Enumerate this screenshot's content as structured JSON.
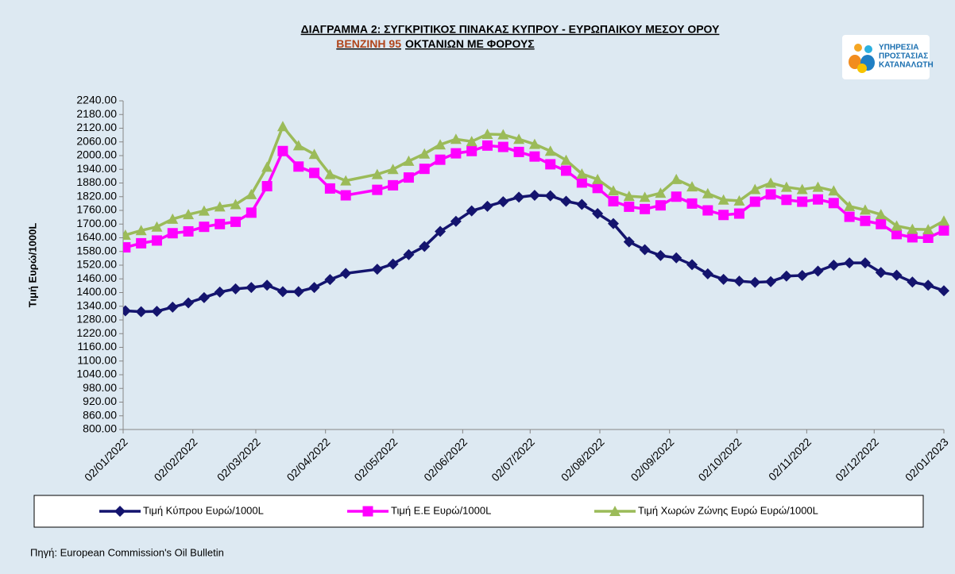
{
  "chart_data": {
    "type": "line",
    "title": "ΔΙΑΓΡΑΜΜΑ 2: ΣΥΓΚΡΙΤΙΚΟΣ ΠΙΝΑΚΑΣ ΚΥΠΡΟΥ - ΕΥΡΩΠΑΙΚΟΥ ΜΕΣΟΥ ΟΡΟΥ",
    "subtitle": [
      "ΒΕΝΖΙΝΗ 95",
      "ΟΚΤΑΝΙΩΝ ΜΕ ΦΟΡΟΥΣ"
    ],
    "y_label": "Τιμή Ευρώ/1000L",
    "x": [
      "03/01/2022",
      "10/01/2022",
      "17/01/2022",
      "24/01/2022",
      "31/01/2022",
      "07/02/2022",
      "14/02/2022",
      "21/02/2022",
      "28/02/2022",
      "07/03/2022",
      "14/03/2022",
      "21/03/2022",
      "28/03/2022",
      "04/04/2022",
      "11/04/2022",
      "25/04/2022",
      "02/05/2022",
      "09/05/2022",
      "16/05/2022",
      "23/05/2022",
      "30/05/2022",
      "06/06/2022",
      "13/06/2022",
      "20/06/2022",
      "27/06/2022",
      "04/07/2022",
      "11/07/2022",
      "18/07/2022",
      "25/07/2022",
      "01/08/2022",
      "08/08/2022",
      "15/08/2022",
      "22/08/2022",
      "29/08/2022",
      "05/09/2022",
      "12/09/2022",
      "19/09/2022",
      "26/09/2022",
      "03/10/2022",
      "10/10/2022",
      "17/10/2022",
      "24/10/2022",
      "31/10/2022",
      "07/11/2022",
      "14/11/2022",
      "21/11/2022",
      "28/11/2022",
      "05/12/2022",
      "12/12/2022",
      "19/12/2022",
      "26/12/2022",
      "02/01/2023"
    ],
    "series": [
      {
        "name": "Τιμή Κύπρου Ευρώ/1000L",
        "color": "#14146e",
        "marker": "diamond",
        "values": [
          1320,
          1316,
          1318,
          1336,
          1355,
          1378,
          1402,
          1416,
          1422,
          1432,
          1404,
          1404,
          1422,
          1457,
          1484,
          1502,
          1525,
          1566,
          1602,
          1668,
          1712,
          1758,
          1778,
          1798,
          1818,
          1826,
          1824,
          1800,
          1786,
          1746,
          1702,
          1622,
          1588,
          1562,
          1552,
          1522,
          1482,
          1458,
          1450,
          1445,
          1448,
          1472,
          1475,
          1494,
          1520,
          1530,
          1530,
          1488,
          1476,
          1446,
          1432,
          1408
        ]
      },
      {
        "name": "Τιμή Ε.Ε Ευρώ/1000L",
        "color": "#ff00ff",
        "marker": "square",
        "values": [
          1598,
          1616,
          1628,
          1660,
          1668,
          1688,
          1700,
          1710,
          1750,
          1866,
          2020,
          1952,
          1924,
          1856,
          1826,
          1850,
          1870,
          1904,
          1942,
          1982,
          2010,
          2020,
          2044,
          2038,
          2016,
          1996,
          1962,
          1934,
          1882,
          1858,
          1800,
          1776,
          1766,
          1782,
          1820,
          1790,
          1760,
          1740,
          1746,
          1798,
          1830,
          1806,
          1798,
          1808,
          1792,
          1732,
          1714,
          1700,
          1656,
          1642,
          1640,
          1672
        ]
      },
      {
        "name": "Τιμή Χωρών Ζώνης Ευρώ Ευρώ/1000L",
        "color": "#9bbb59",
        "marker": "triangle",
        "values": [
          1652,
          1672,
          1688,
          1722,
          1742,
          1758,
          1776,
          1786,
          1830,
          1950,
          2128,
          2044,
          2006,
          1918,
          1890,
          1918,
          1940,
          1976,
          2008,
          2048,
          2072,
          2062,
          2094,
          2092,
          2072,
          2050,
          2020,
          1980,
          1920,
          1896,
          1846,
          1822,
          1818,
          1836,
          1896,
          1864,
          1834,
          1806,
          1802,
          1852,
          1880,
          1862,
          1852,
          1862,
          1846,
          1778,
          1762,
          1742,
          1692,
          1678,
          1676,
          1714
        ]
      }
    ],
    "xlim": [
      "02/01/2022",
      "02/01/2023"
    ],
    "xticks": [
      "02/01/2022",
      "02/02/2022",
      "02/03/2022",
      "02/04/2022",
      "02/05/2022",
      "02/06/2022",
      "02/07/2022",
      "02/08/2022",
      "02/09/2022",
      "02/10/2022",
      "02/11/2022",
      "02/12/2022",
      "02/01/2023"
    ],
    "ylim": [
      800,
      2240
    ],
    "yticks": [
      {
        "value": 800,
        "label": "800.00"
      },
      {
        "value": 860,
        "label": "860.00"
      },
      {
        "value": 920,
        "label": "920.00"
      },
      {
        "value": 980,
        "label": "980.00"
      },
      {
        "value": 1040,
        "label": "1040.00"
      },
      {
        "value": 1100,
        "label": "1100.00"
      },
      {
        "value": 1160,
        "label": "1160.00"
      },
      {
        "value": 1220,
        "label": "1220.00"
      },
      {
        "value": 1280,
        "label": "1280.00"
      },
      {
        "value": 1340,
        "label": "1340.00"
      },
      {
        "value": 1400,
        "label": "1400.00"
      },
      {
        "value": 1460,
        "label": "1460.00"
      },
      {
        "value": 1520,
        "label": "1520.00"
      },
      {
        "value": 1580,
        "label": "1580.00"
      },
      {
        "value": 1640,
        "label": "1640.00"
      },
      {
        "value": 1700,
        "label": "1700.00"
      },
      {
        "value": 1760,
        "label": "1760.00"
      },
      {
        "value": 1820,
        "label": "1820.00"
      },
      {
        "value": 1880,
        "label": "1880.00"
      },
      {
        "value": 1940,
        "label": "1940.00"
      },
      {
        "value": 2000,
        "label": "2000.00"
      },
      {
        "value": 2060,
        "label": "2060.00"
      },
      {
        "value": 2120,
        "label": "2120.00"
      },
      {
        "value": 2180,
        "label": "2180.00"
      },
      {
        "value": 2240,
        "label": "2240.00"
      }
    ],
    "grid": false
  },
  "logo_text": [
    "ΥΠΗΡΕΣΙΑ",
    "ΠΡΟΣΤΑΣΙΑΣ",
    "ΚΑΤΑΝΑΛΩΤΗ"
  ],
  "source": "Πηγή: European Commission's Oil Bulletin"
}
